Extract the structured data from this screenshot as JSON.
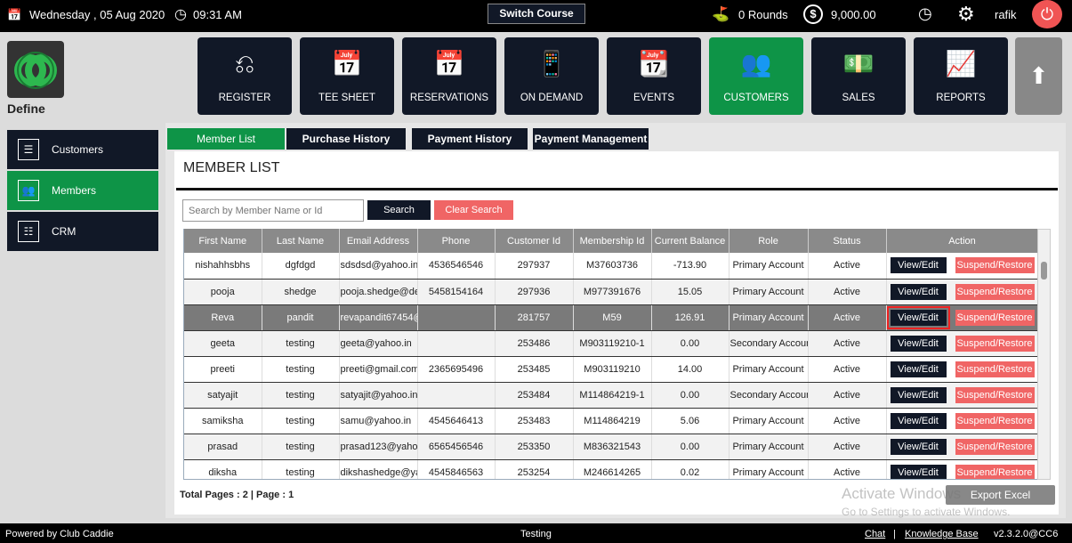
{
  "topbar": {
    "date": "Wednesday , 05 Aug 2020",
    "time": "09:31 AM",
    "switch_course": "Switch Course",
    "rounds": "0 Rounds",
    "balance": "9,000.00",
    "user": "rafik"
  },
  "logo": {
    "label": "Define",
    "color": "#2db84f"
  },
  "nav": [
    {
      "label": "REGISTER",
      "icon": "barcode-scanner-icon"
    },
    {
      "label": "TEE SHEET",
      "icon": "calendar-list-icon"
    },
    {
      "label": "RESERVATIONS",
      "icon": "calendar-list-icon"
    },
    {
      "label": "ON DEMAND",
      "icon": "mobile-user-icon"
    },
    {
      "label": "EVENTS",
      "icon": "calendar-edit-icon"
    },
    {
      "label": "CUSTOMERS",
      "icon": "users-icon",
      "active": true
    },
    {
      "label": "SALES",
      "icon": "money-stack-icon"
    },
    {
      "label": "REPORTS",
      "icon": "report-icon"
    }
  ],
  "sidebar": [
    {
      "label": "Customers",
      "icon": "customer-card-icon"
    },
    {
      "label": "Members",
      "icon": "users-icon",
      "active": true
    },
    {
      "label": "CRM",
      "icon": "document-icon"
    }
  ],
  "tabs": [
    "Member List",
    "Purchase History",
    "Payment History",
    "Payment Management"
  ],
  "main": {
    "title": "MEMBER LIST",
    "search_placeholder": "Search by Member Name or Id",
    "search_label": "Search",
    "clear_label": "Clear Search",
    "total_pages": "Total Pages : 2 | Page : 1",
    "export_label": "Export Excel"
  },
  "table": {
    "columns": [
      "First Name",
      "Last Name",
      "Email Address",
      "Phone",
      "Customer Id",
      "Membership Id",
      "Current Balance",
      "Role",
      "Status",
      "Action"
    ],
    "view_label": "View/Edit",
    "suspend_label": "Suspend/Restore",
    "rows": [
      [
        "nishahhsbhs",
        "dgfdgd",
        "sdsdsd@yahoo.in",
        "4536546546",
        "297937",
        "M37603736",
        "-713.90",
        "Primary Account",
        "Active"
      ],
      [
        "pooja",
        "shedge",
        "pooja.shedge@def",
        "5458154164",
        "297936",
        "M977391676",
        "15.05",
        "Primary Account",
        "Active"
      ],
      [
        "Reva",
        "pandit",
        "revapandit67454@",
        "",
        "281757",
        "M59",
        "126.91",
        "Primary Account",
        "Active"
      ],
      [
        "geeta",
        "testing",
        "geeta@yahoo.in",
        "",
        "253486",
        "M903119210-1",
        "0.00",
        "Secondary Account",
        "Active"
      ],
      [
        "preeti",
        "testing",
        "preeti@gmail.com",
        "2365695496",
        "253485",
        "M903119210",
        "14.00",
        "Primary Account",
        "Active"
      ],
      [
        "satyajit",
        "testing",
        "satyajit@yahoo.in",
        "",
        "253484",
        "M114864219-1",
        "0.00",
        "Secondary Account",
        "Active"
      ],
      [
        "samiksha",
        "testing",
        "samu@yahoo.in",
        "4545646413",
        "253483",
        "M114864219",
        "5.06",
        "Primary Account",
        "Active"
      ],
      [
        "prasad",
        "testing",
        "prasad123@yahoo",
        "6565456546",
        "253350",
        "M836321543",
        "0.00",
        "Primary Account",
        "Active"
      ],
      [
        "diksha",
        "testing",
        "dikshashedge@yah",
        "4545846563",
        "253254",
        "M246614265",
        "0.02",
        "Primary Account",
        "Active"
      ]
    ]
  },
  "watermark": {
    "line1": "Activate Windows",
    "line2": "Go to Settings to activate Windows."
  },
  "footer": {
    "powered": "Powered by Club Caddie",
    "center": "Testing",
    "chat": "Chat",
    "sep": "|",
    "kb": "Knowledge Base",
    "version": "v2.3.2.0@CC6"
  },
  "colors": {
    "accent": "#0e9447",
    "dark": "#111827",
    "danger": "#f06565"
  }
}
